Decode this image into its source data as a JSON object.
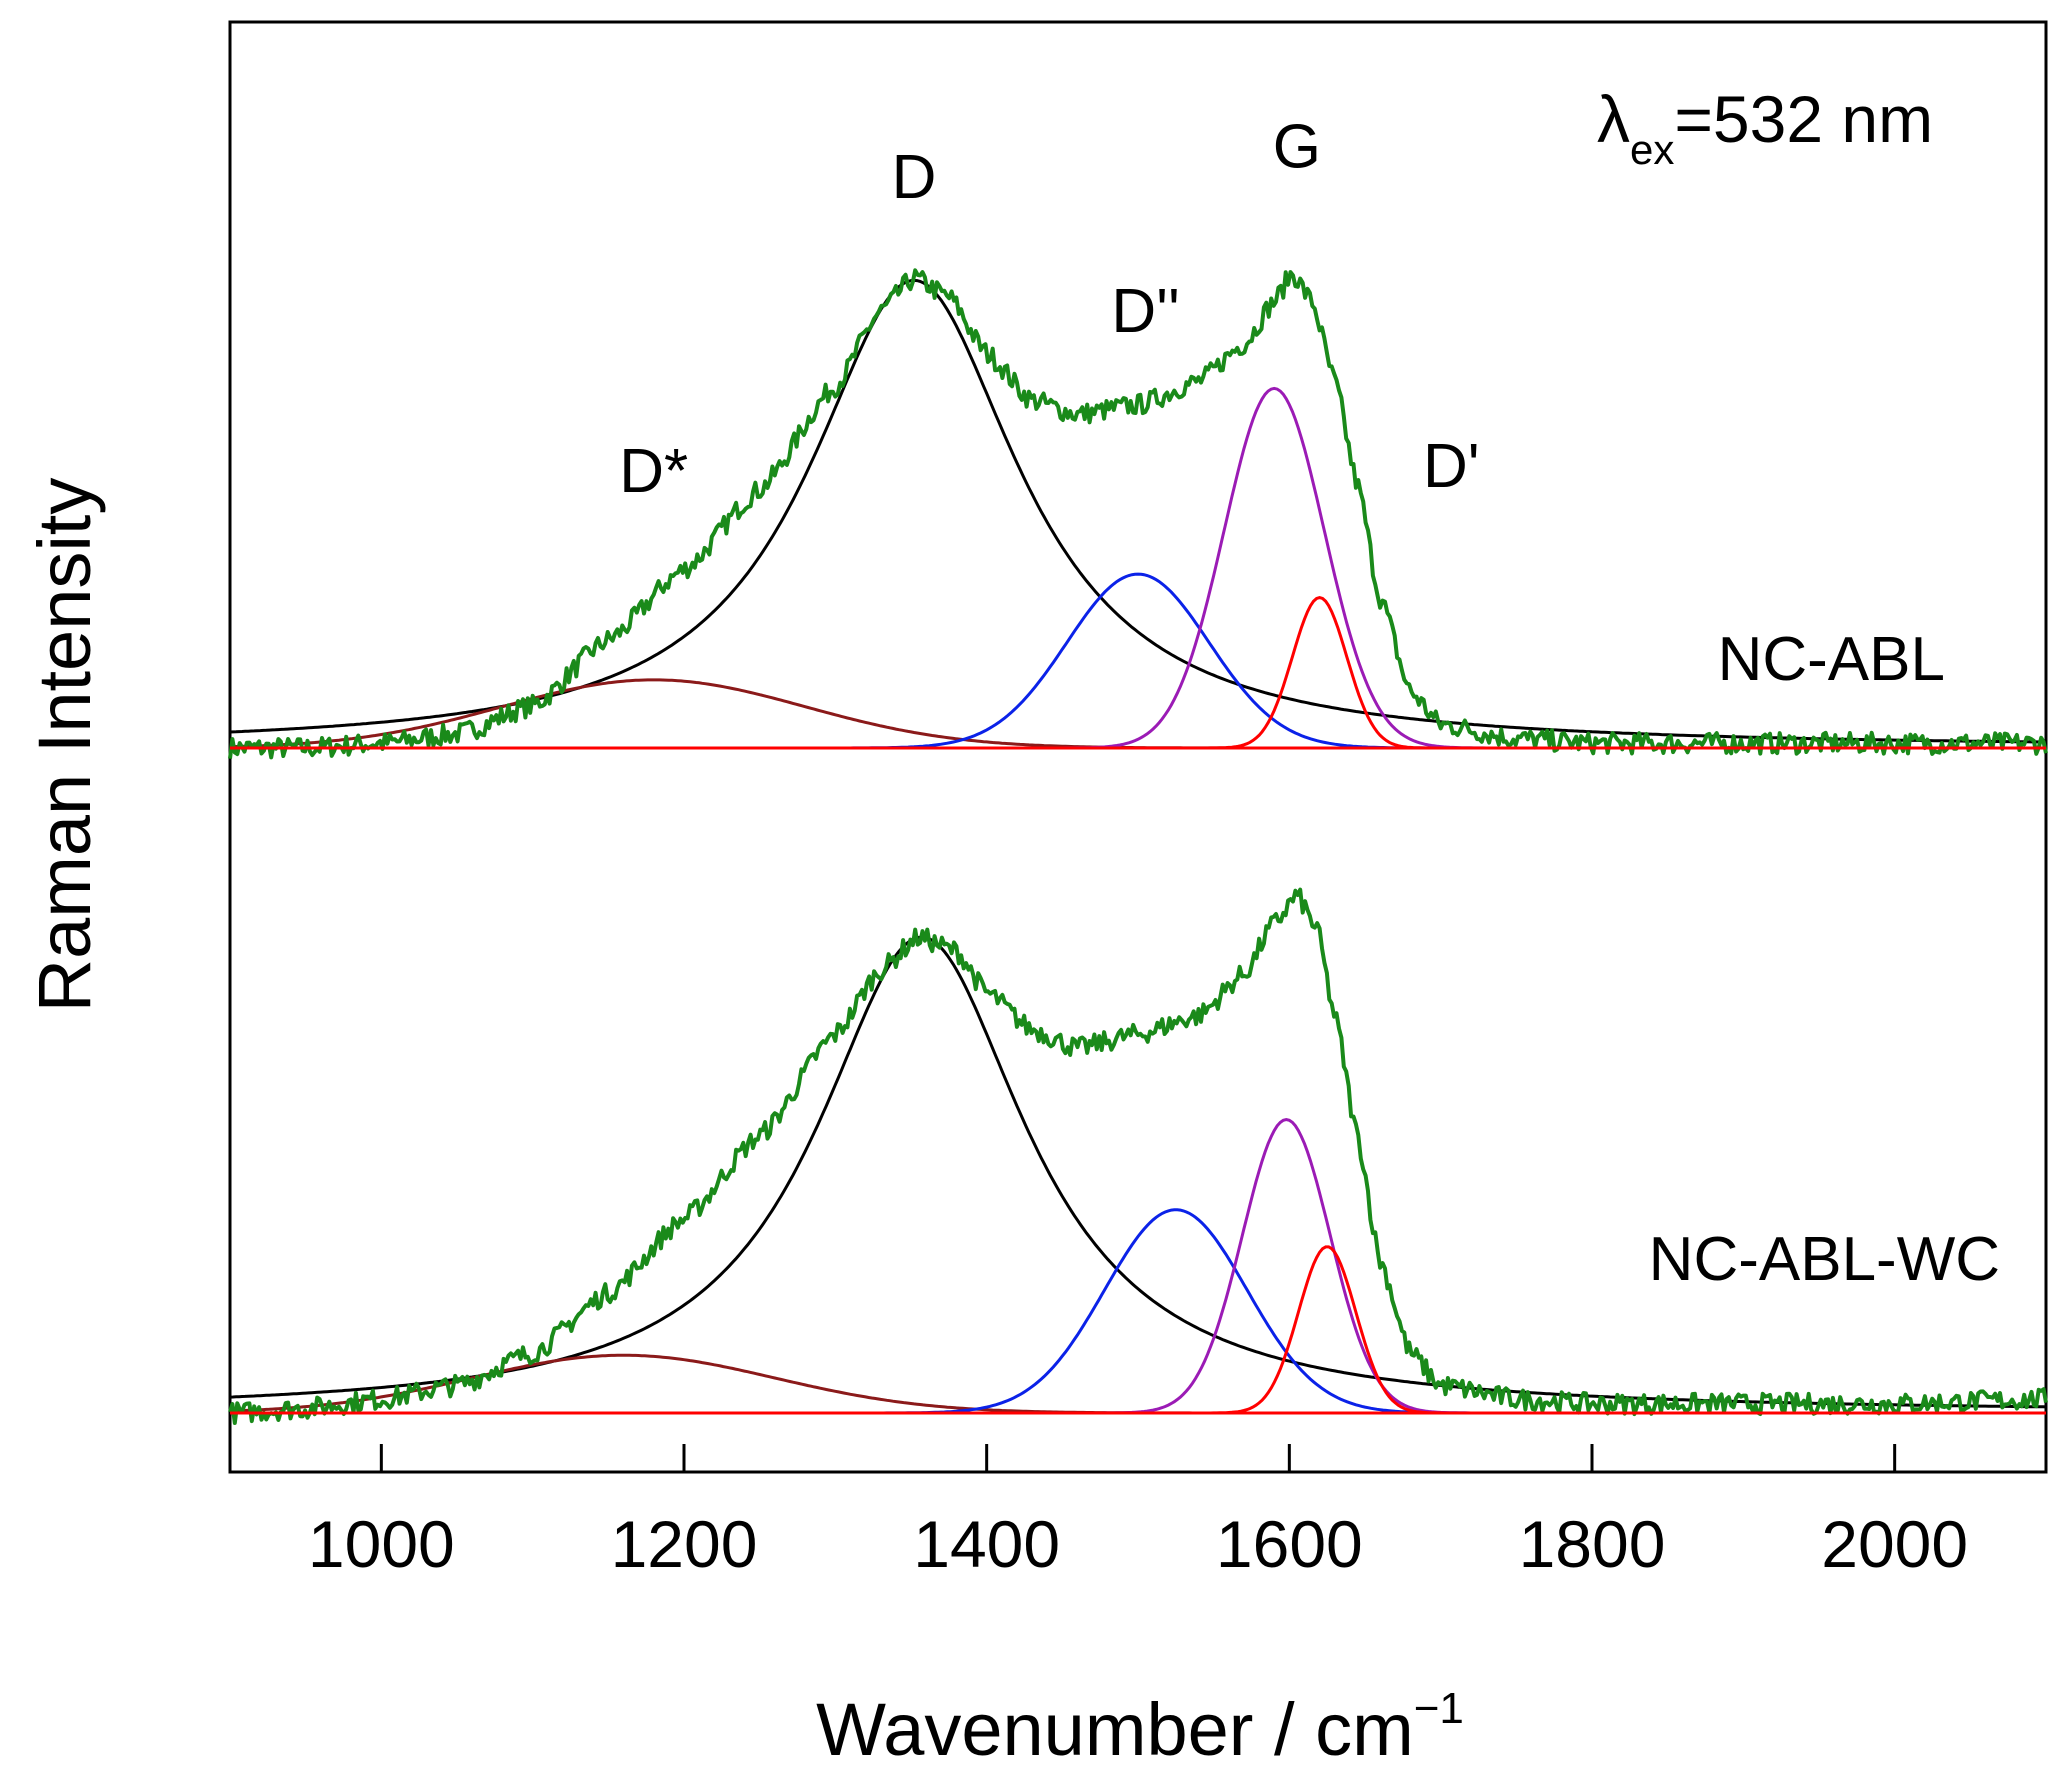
{
  "chart_data": {
    "type": "line",
    "title": "",
    "xlabel": "Wavenumber / cm",
    "xlabel_superscript": "−1",
    "ylabel": "Raman Intensity",
    "xlim": [
      900,
      2100
    ],
    "x_ticks": [
      1000,
      1200,
      1400,
      1600,
      1800,
      2000
    ],
    "annotation": {
      "lambda": "λ",
      "subscript": "ex",
      "value": "=532 nm"
    },
    "peak_labels": [
      {
        "label": "D*",
        "x": 1180,
        "y": 0.545,
        "panel": "top"
      },
      {
        "label": "D",
        "x": 1352,
        "y": 1.17,
        "panel": "top"
      },
      {
        "label": "D''",
        "x": 1505,
        "y": 0.885,
        "panel": "top"
      },
      {
        "label": "G",
        "x": 1605,
        "y": 1.235,
        "panel": "top"
      },
      {
        "label": "D'",
        "x": 1707,
        "y": 0.555,
        "panel": "top"
      }
    ],
    "panels": [
      {
        "name": "NC-ABL",
        "label": "NC-ABL",
        "experimental": {
          "color": "#1a8a1a",
          "points": [
            [
              900,
              0.0
            ],
            [
              950,
              0.0
            ],
            [
              1000,
              0.01
            ],
            [
              1050,
              0.03
            ],
            [
              1100,
              0.09
            ],
            [
              1150,
              0.23
            ],
            [
              1200,
              0.38
            ],
            [
              1250,
              0.55
            ],
            [
              1300,
              0.77
            ],
            [
              1330,
              0.93
            ],
            [
              1352,
              1.0
            ],
            [
              1375,
              0.96
            ],
            [
              1400,
              0.84
            ],
            [
              1430,
              0.74
            ],
            [
              1460,
              0.71
            ],
            [
              1500,
              0.73
            ],
            [
              1540,
              0.78
            ],
            [
              1570,
              0.86
            ],
            [
              1590,
              0.95
            ],
            [
              1602,
              1.01
            ],
            [
              1615,
              0.95
            ],
            [
              1630,
              0.78
            ],
            [
              1645,
              0.56
            ],
            [
              1660,
              0.32
            ],
            [
              1680,
              0.12
            ],
            [
              1700,
              0.05
            ],
            [
              1750,
              0.02
            ],
            [
              1800,
              0.01
            ],
            [
              1900,
              0.01
            ],
            [
              2000,
              0.01
            ],
            [
              2100,
              0.01
            ]
          ]
        },
        "components": [
          {
            "name": "D",
            "color": "#000000",
            "center": 1352,
            "height": 0.995,
            "width": 85,
            "shape": "lorentz"
          },
          {
            "name": "D*",
            "color": "#8b1a1a",
            "center": 1180,
            "height": 0.145,
            "width": 100,
            "shape": "gauss"
          },
          {
            "name": "D''",
            "color": "#0b22e8",
            "center": 1500,
            "height": 0.37,
            "width": 47,
            "shape": "gauss"
          },
          {
            "name": "G",
            "color": "#9b1bb5",
            "center": 1590,
            "height": 0.765,
            "width": 33,
            "shape": "gauss"
          },
          {
            "name": "D'",
            "color": "#ff0000",
            "center": 1620,
            "height": 0.32,
            "width": 18,
            "shape": "gauss"
          }
        ]
      },
      {
        "name": "NC-ABL-WC",
        "label": "NC-ABL-WC",
        "experimental": {
          "color": "#1a8a1a",
          "points": [
            [
              900,
              0.0
            ],
            [
              950,
              0.01
            ],
            [
              1000,
              0.03
            ],
            [
              1050,
              0.06
            ],
            [
              1100,
              0.13
            ],
            [
              1150,
              0.26
            ],
            [
              1200,
              0.42
            ],
            [
              1250,
              0.6
            ],
            [
              1300,
              0.82
            ],
            [
              1330,
              0.96
            ],
            [
              1355,
              1.03
            ],
            [
              1380,
              1.0
            ],
            [
              1400,
              0.91
            ],
            [
              1430,
              0.83
            ],
            [
              1460,
              0.79
            ],
            [
              1500,
              0.82
            ],
            [
              1540,
              0.86
            ],
            [
              1570,
              0.95
            ],
            [
              1590,
              1.06
            ],
            [
              1605,
              1.12
            ],
            [
              1618,
              1.05
            ],
            [
              1630,
              0.86
            ],
            [
              1645,
              0.6
            ],
            [
              1660,
              0.33
            ],
            [
              1680,
              0.13
            ],
            [
              1700,
              0.06
            ],
            [
              1750,
              0.03
            ],
            [
              1800,
              0.02
            ],
            [
              1900,
              0.02
            ],
            [
              2000,
              0.02
            ],
            [
              2100,
              0.03
            ]
          ]
        },
        "components": [
          {
            "name": "D",
            "color": "#000000",
            "center": 1357,
            "height": 1.03,
            "width": 85,
            "shape": "lorentz"
          },
          {
            "name": "D*",
            "color": "#8b1a1a",
            "center": 1160,
            "height": 0.125,
            "width": 100,
            "shape": "gauss"
          },
          {
            "name": "D''",
            "color": "#0b22e8",
            "center": 1525,
            "height": 0.44,
            "width": 47,
            "shape": "gauss"
          },
          {
            "name": "G",
            "color": "#9b1bb5",
            "center": 1598,
            "height": 0.635,
            "width": 29,
            "shape": "gauss"
          },
          {
            "name": "D'",
            "color": "#ff0000",
            "center": 1625,
            "height": 0.36,
            "width": 19,
            "shape": "gauss"
          }
        ]
      }
    ]
  }
}
